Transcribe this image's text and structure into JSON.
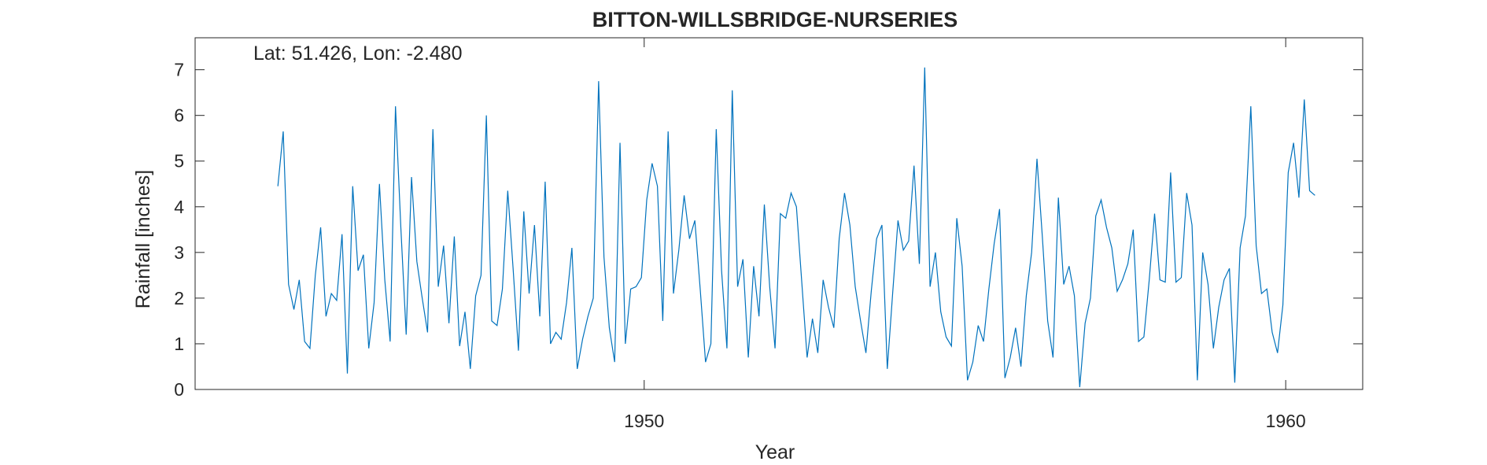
{
  "chart_data": {
    "type": "line",
    "title": "BITTON-WILLSBRIDGE-NURSERIES",
    "xlabel": "Year",
    "ylabel": "Rainfall [inches]",
    "annotation": "Lat: 51.426, Lon: -2.480",
    "xlim": [
      1943.0,
      1961.2
    ],
    "ylim": [
      0,
      7.7
    ],
    "xticks": [
      1950,
      1960
    ],
    "xtick_labels": [
      "1950",
      "1960"
    ],
    "yticks": [
      0,
      1,
      2,
      3,
      4,
      5,
      6,
      7
    ],
    "ytick_labels": [
      "0",
      "1",
      "2",
      "3",
      "4",
      "5",
      "6",
      "7"
    ],
    "grid": false,
    "line_color": "#0072bd",
    "series": [
      {
        "x_start": 1944.29,
        "x_step": 0.08333,
        "values": [
          4.45,
          5.65,
          2.3,
          1.75,
          2.4,
          1.05,
          0.9,
          2.5,
          3.55,
          1.6,
          2.1,
          1.95,
          3.4,
          0.35,
          4.45,
          2.6,
          2.95,
          0.9,
          1.9,
          4.5,
          2.4,
          1.05,
          6.2,
          3.55,
          1.2,
          4.65,
          2.8,
          2.0,
          1.25,
          5.7,
          2.25,
          3.15,
          1.45,
          3.35,
          0.95,
          1.7,
          0.45,
          2.05,
          2.5,
          6.0,
          1.5,
          1.4,
          2.2,
          4.35,
          2.65,
          0.85,
          3.9,
          2.1,
          3.6,
          1.6,
          4.55,
          1.0,
          1.25,
          1.1,
          1.9,
          3.1,
          0.45,
          1.1,
          1.6,
          2.0,
          6.75,
          2.9,
          1.35,
          0.6,
          5.4,
          1.0,
          2.2,
          2.25,
          2.45,
          4.15,
          4.95,
          4.45,
          1.5,
          5.65,
          2.1,
          3.05,
          4.25,
          3.3,
          3.7,
          2.2,
          0.6,
          1.0,
          5.7,
          2.6,
          0.9,
          6.55,
          2.25,
          2.85,
          0.7,
          2.7,
          1.6,
          4.05,
          2.25,
          0.9,
          3.85,
          3.75,
          4.3,
          4.0,
          2.35,
          0.7,
          1.55,
          0.8,
          2.4,
          1.8,
          1.35,
          3.3,
          4.3,
          3.6,
          2.25,
          1.5,
          0.8,
          2.15,
          3.3,
          3.6,
          0.45,
          2.1,
          3.7,
          3.05,
          3.25,
          4.9,
          2.75,
          7.05,
          2.25,
          3.0,
          1.7,
          1.15,
          0.95,
          3.75,
          2.7,
          0.2,
          0.6,
          1.4,
          1.05,
          2.2,
          3.2,
          3.95,
          0.25,
          0.7,
          1.35,
          0.5,
          2.05,
          3.0,
          5.05,
          3.35,
          1.5,
          0.7,
          4.2,
          2.3,
          2.7,
          2.05,
          0.05,
          1.45,
          2.0,
          3.8,
          4.15,
          3.55,
          3.1,
          2.15,
          2.4,
          2.75,
          3.5,
          1.05,
          1.15,
          2.4,
          3.85,
          2.4,
          2.35,
          4.75,
          2.35,
          2.45,
          4.3,
          3.6,
          0.2,
          3.0,
          2.3,
          0.9,
          1.8,
          2.4,
          2.65,
          0.15,
          3.1,
          3.8,
          6.2,
          3.15,
          2.1,
          2.2,
          1.25,
          0.8,
          1.85,
          4.75,
          5.4,
          4.2,
          6.35,
          4.35,
          4.25
        ]
      }
    ]
  }
}
